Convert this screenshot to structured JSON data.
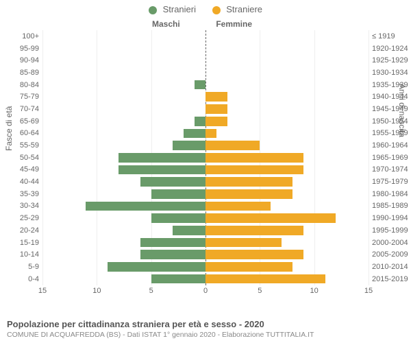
{
  "type": "population-pyramid",
  "title": "Popolazione per cittadinanza straniera per età e sesso - 2020",
  "subtitle": "COMUNE DI ACQUAFREDDA (BS) - Dati ISTAT 1° gennaio 2020 - Elaborazione TUTTITALIA.IT",
  "legend": [
    {
      "label": "Stranieri",
      "color": "#699b69"
    },
    {
      "label": "Straniere",
      "color": "#f0a926"
    }
  ],
  "left_section_label": "Maschi",
  "right_section_label": "Femmine",
  "y_left_title": "Fasce di età",
  "y_right_title": "Anni di nascita",
  "x_axis": {
    "min": -15,
    "max": 15,
    "ticks": [
      -15,
      -10,
      -5,
      0,
      5,
      10,
      15
    ],
    "tick_labels": [
      "15",
      "10",
      "5",
      "0",
      "5",
      "10",
      "15"
    ]
  },
  "colors": {
    "male_bar": "#699b69",
    "female_bar": "#f0a926",
    "grid": "#eeeeee",
    "center_line": "#666666",
    "text": "#666666",
    "background": "#ffffff"
  },
  "font": {
    "family": "Arial",
    "label_size": 11,
    "axis_title_size": 12,
    "legend_size": 13
  },
  "rows": [
    {
      "age": "100+",
      "birth": "≤ 1919",
      "m": 0,
      "f": 0
    },
    {
      "age": "95-99",
      "birth": "1920-1924",
      "m": 0,
      "f": 0
    },
    {
      "age": "90-94",
      "birth": "1925-1929",
      "m": 0,
      "f": 0
    },
    {
      "age": "85-89",
      "birth": "1930-1934",
      "m": 0,
      "f": 0
    },
    {
      "age": "80-84",
      "birth": "1935-1939",
      "m": 1,
      "f": 0
    },
    {
      "age": "75-79",
      "birth": "1940-1944",
      "m": 0,
      "f": 2
    },
    {
      "age": "70-74",
      "birth": "1945-1949",
      "m": 0,
      "f": 2
    },
    {
      "age": "65-69",
      "birth": "1950-1954",
      "m": 1,
      "f": 2
    },
    {
      "age": "60-64",
      "birth": "1955-1959",
      "m": 2,
      "f": 1
    },
    {
      "age": "55-59",
      "birth": "1960-1964",
      "m": 3,
      "f": 5
    },
    {
      "age": "50-54",
      "birth": "1965-1969",
      "m": 8,
      "f": 9
    },
    {
      "age": "45-49",
      "birth": "1970-1974",
      "m": 8,
      "f": 9
    },
    {
      "age": "40-44",
      "birth": "1975-1979",
      "m": 6,
      "f": 8
    },
    {
      "age": "35-39",
      "birth": "1980-1984",
      "m": 5,
      "f": 8
    },
    {
      "age": "30-34",
      "birth": "1985-1989",
      "m": 11,
      "f": 6
    },
    {
      "age": "25-29",
      "birth": "1990-1994",
      "m": 5,
      "f": 12
    },
    {
      "age": "20-24",
      "birth": "1995-1999",
      "m": 3,
      "f": 9
    },
    {
      "age": "15-19",
      "birth": "2000-2004",
      "m": 6,
      "f": 7
    },
    {
      "age": "10-14",
      "birth": "2005-2009",
      "m": 6,
      "f": 9
    },
    {
      "age": "5-9",
      "birth": "2010-2014",
      "m": 9,
      "f": 8
    },
    {
      "age": "0-4",
      "birth": "2015-2019",
      "m": 5,
      "f": 11
    }
  ]
}
